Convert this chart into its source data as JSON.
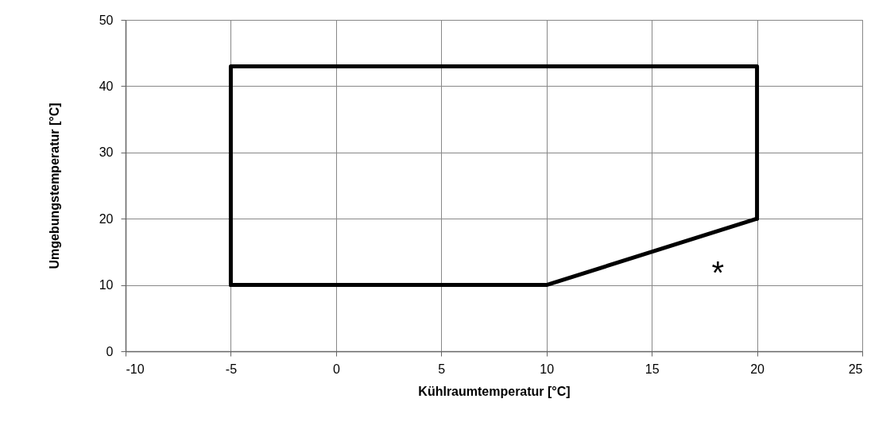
{
  "chart_data": {
    "type": "line",
    "xlabel": "Kühlraumtemperatur [°C]",
    "ylabel": "Umgebungstemperatur [°C]",
    "xlim": [
      -10,
      25
    ],
    "xticks": [
      -10,
      -5,
      0,
      5,
      10,
      15,
      20,
      25
    ],
    "ylim": [
      0,
      50
    ],
    "yticks": [
      0,
      10,
      20,
      30,
      40,
      50
    ],
    "grid": true,
    "marker": "none",
    "line_style": "solid",
    "series": [
      {
        "color": "#000000",
        "x": [
          -5,
          -5,
          20,
          20
        ],
        "values": [
          10,
          43,
          43,
          20
        ]
      },
      {
        "color": "#000000",
        "x": [
          -5,
          10,
          20
        ],
        "values": [
          10,
          10,
          20
        ]
      }
    ],
    "annotations": [
      "*"
    ]
  }
}
